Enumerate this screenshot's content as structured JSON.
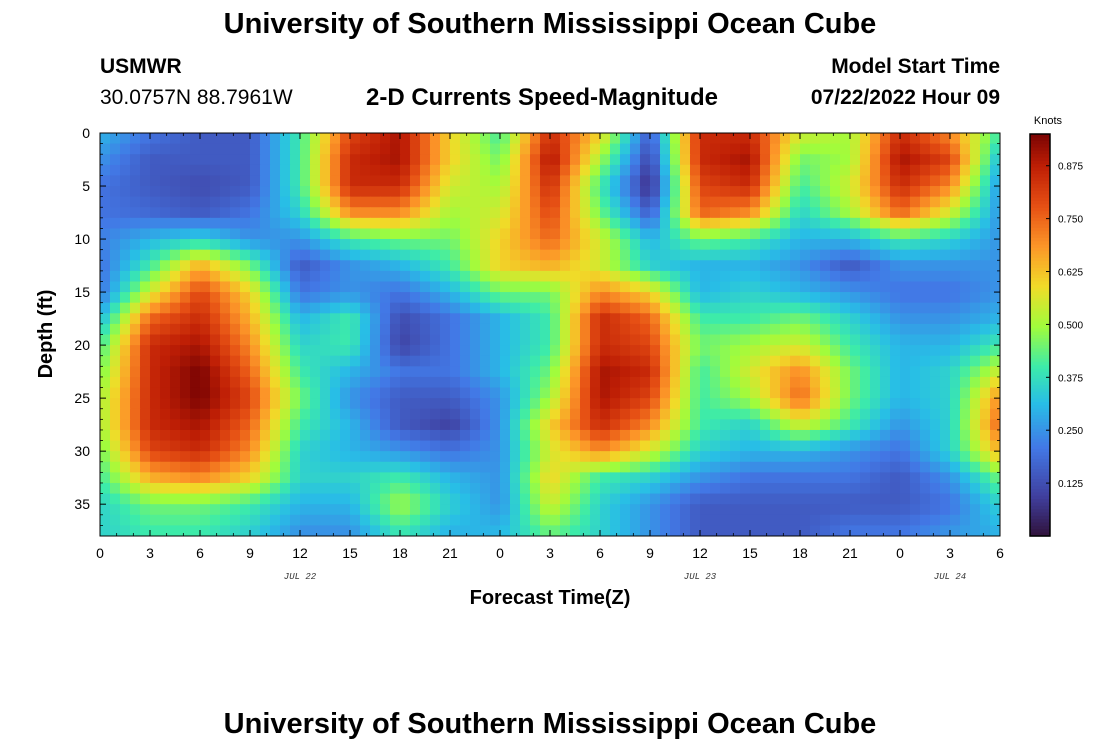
{
  "header": {
    "title": "University of Southern Mississippi Ocean Cube",
    "station_id": "USMWR",
    "coords": "30.0757N  88.7961W",
    "subtitle": "2-D Currents Speed-Magnitude",
    "model_start_label": "Model Start Time",
    "model_start_value": "07/22/2022 Hour 09"
  },
  "footer": {
    "title": "University of Southern Mississippi Ocean Cube"
  },
  "chart_data": {
    "type": "heatmap",
    "title": "2-D Currents Speed-Magnitude",
    "xlabel": "Forecast Time(Z)",
    "ylabel": "Depth (ft)",
    "x_range_hours": [
      0,
      54
    ],
    "x_tick_labels": [
      "0",
      "3",
      "6",
      "9",
      "12",
      "15",
      "18",
      "21",
      "0",
      "3",
      "6",
      "9",
      "12",
      "15",
      "18",
      "21",
      "0",
      "3",
      "6"
    ],
    "date_labels": [
      {
        "text": "JUL 22",
        "at_hour": 12
      },
      {
        "text": "JUL 23",
        "at_hour": 36
      },
      {
        "text": "JUL 24",
        "at_hour": 51
      }
    ],
    "y_range_ft": [
      0,
      38
    ],
    "y_tick_labels": [
      "0",
      "5",
      "10",
      "15",
      "20",
      "25",
      "30",
      "35"
    ],
    "colorbar": {
      "unit": "Knots",
      "range": [
        0,
        0.95
      ],
      "ticks": [
        "0.875",
        "0.750",
        "0.625",
        "0.500",
        "0.375",
        "0.250",
        "0.125"
      ],
      "tick_values": [
        0.875,
        0.75,
        0.625,
        0.5,
        0.375,
        0.25,
        0.125
      ]
    },
    "depths_ft": [
      0,
      2.5,
      5,
      7.5,
      10,
      12.5,
      15,
      17.5,
      20,
      22.5,
      25,
      27.5,
      30,
      32.5,
      35,
      37.5
    ],
    "hours": [
      0,
      3,
      6,
      9,
      12,
      15,
      18,
      21,
      24,
      27,
      30,
      33,
      36,
      39,
      42,
      45,
      48,
      51,
      54
    ],
    "speed_knots": [
      [
        0.3,
        0.2,
        0.15,
        0.15,
        0.4,
        0.8,
        0.9,
        0.6,
        0.4,
        0.85,
        0.6,
        0.15,
        0.85,
        0.85,
        0.55,
        0.5,
        0.85,
        0.7,
        0.4
      ],
      [
        0.25,
        0.15,
        0.15,
        0.15,
        0.4,
        0.85,
        0.9,
        0.6,
        0.45,
        0.9,
        0.5,
        0.1,
        0.85,
        0.9,
        0.45,
        0.5,
        0.9,
        0.8,
        0.3
      ],
      [
        0.2,
        0.15,
        0.12,
        0.15,
        0.4,
        0.85,
        0.85,
        0.55,
        0.5,
        0.85,
        0.4,
        0.05,
        0.8,
        0.85,
        0.4,
        0.55,
        0.85,
        0.7,
        0.25
      ],
      [
        0.2,
        0.18,
        0.15,
        0.2,
        0.35,
        0.7,
        0.7,
        0.5,
        0.55,
        0.8,
        0.45,
        0.15,
        0.75,
        0.7,
        0.35,
        0.5,
        0.75,
        0.55,
        0.25
      ],
      [
        0.22,
        0.3,
        0.35,
        0.25,
        0.25,
        0.4,
        0.45,
        0.45,
        0.6,
        0.75,
        0.55,
        0.3,
        0.45,
        0.4,
        0.3,
        0.3,
        0.4,
        0.35,
        0.25
      ],
      [
        0.2,
        0.4,
        0.65,
        0.45,
        0.15,
        0.25,
        0.3,
        0.4,
        0.6,
        0.65,
        0.55,
        0.35,
        0.3,
        0.3,
        0.25,
        0.15,
        0.25,
        0.25,
        0.25
      ],
      [
        0.2,
        0.55,
        0.8,
        0.6,
        0.2,
        0.25,
        0.2,
        0.3,
        0.45,
        0.45,
        0.7,
        0.6,
        0.3,
        0.35,
        0.3,
        0.25,
        0.2,
        0.2,
        0.25
      ],
      [
        0.3,
        0.75,
        0.85,
        0.65,
        0.3,
        0.4,
        0.12,
        0.2,
        0.3,
        0.4,
        0.85,
        0.75,
        0.4,
        0.4,
        0.45,
        0.35,
        0.25,
        0.25,
        0.3
      ],
      [
        0.4,
        0.85,
        0.9,
        0.7,
        0.35,
        0.4,
        0.1,
        0.2,
        0.3,
        0.4,
        0.85,
        0.8,
        0.45,
        0.5,
        0.55,
        0.4,
        0.3,
        0.3,
        0.4
      ],
      [
        0.45,
        0.85,
        0.95,
        0.75,
        0.4,
        0.3,
        0.2,
        0.2,
        0.3,
        0.45,
        0.9,
        0.85,
        0.4,
        0.55,
        0.7,
        0.45,
        0.3,
        0.35,
        0.55
      ],
      [
        0.5,
        0.85,
        0.95,
        0.8,
        0.45,
        0.25,
        0.15,
        0.15,
        0.25,
        0.5,
        0.9,
        0.8,
        0.4,
        0.5,
        0.75,
        0.45,
        0.3,
        0.35,
        0.7
      ],
      [
        0.5,
        0.85,
        0.9,
        0.75,
        0.4,
        0.3,
        0.15,
        0.1,
        0.25,
        0.6,
        0.85,
        0.7,
        0.4,
        0.35,
        0.55,
        0.4,
        0.25,
        0.35,
        0.75
      ],
      [
        0.45,
        0.8,
        0.85,
        0.7,
        0.35,
        0.3,
        0.25,
        0.2,
        0.25,
        0.55,
        0.7,
        0.55,
        0.35,
        0.3,
        0.3,
        0.25,
        0.2,
        0.35,
        0.65
      ],
      [
        0.4,
        0.65,
        0.7,
        0.6,
        0.35,
        0.35,
        0.4,
        0.3,
        0.25,
        0.6,
        0.4,
        0.35,
        0.25,
        0.2,
        0.2,
        0.2,
        0.15,
        0.25,
        0.45
      ],
      [
        0.35,
        0.45,
        0.45,
        0.4,
        0.3,
        0.3,
        0.5,
        0.35,
        0.25,
        0.55,
        0.35,
        0.25,
        0.15,
        0.15,
        0.15,
        0.15,
        0.15,
        0.2,
        0.35
      ],
      [
        0.35,
        0.4,
        0.4,
        0.35,
        0.25,
        0.25,
        0.4,
        0.3,
        0.3,
        0.45,
        0.35,
        0.25,
        0.15,
        0.15,
        0.15,
        0.2,
        0.2,
        0.25,
        0.3
      ]
    ]
  }
}
